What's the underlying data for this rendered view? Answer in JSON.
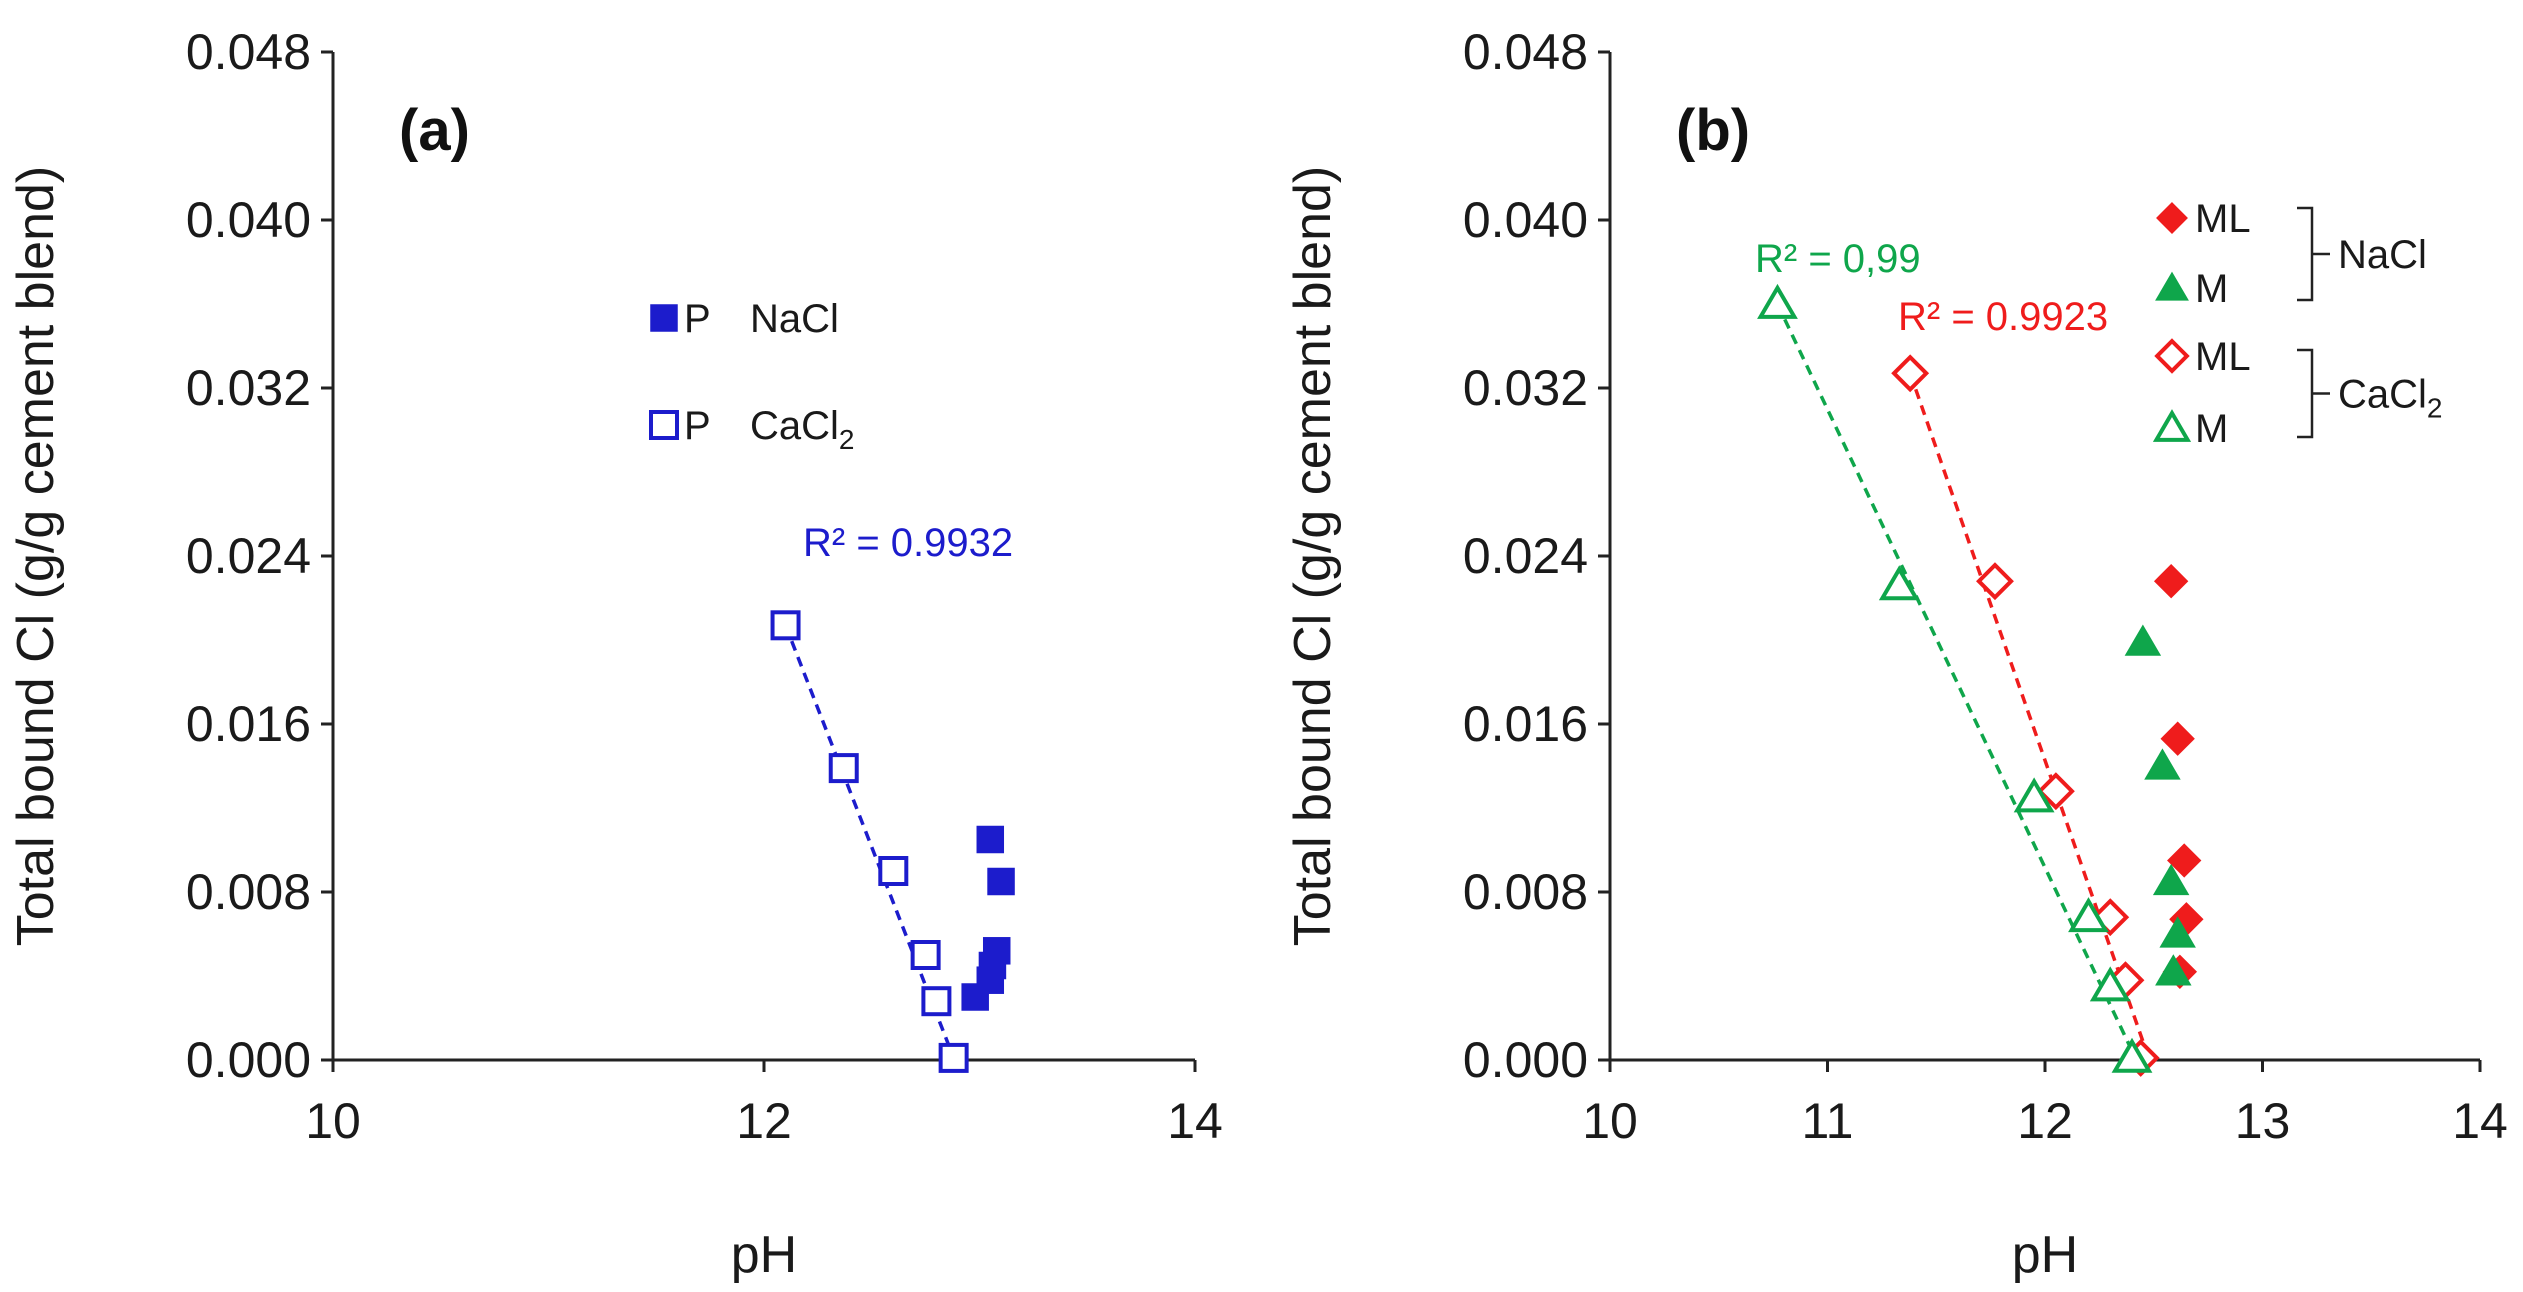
{
  "chart_data": [
    {
      "type": "scatter",
      "panel_label": "(a)",
      "xlabel": "pH",
      "ylabel": "Total bound Cl (g/g cement blend)",
      "xlim": [
        10,
        14
      ],
      "ylim": [
        0,
        0.048
      ],
      "xticks": [
        "10",
        "12",
        "14"
      ],
      "xtick_values": [
        10,
        12,
        14
      ],
      "yticks": [
        "0.000",
        "0.008",
        "0.016",
        "0.024",
        "0.032",
        "0.040",
        "0.048"
      ],
      "ytick_values": [
        0,
        0.008,
        0.016,
        0.024,
        0.032,
        0.04,
        0.048
      ],
      "legend": {
        "placement": "top-center",
        "entries": [
          {
            "marker": "P",
            "label": "NaCl",
            "label_sub": "",
            "series": "P NaCl"
          },
          {
            "marker": "P",
            "label": "CaCl",
            "label_sub": "2",
            "series": "P CaCl2"
          }
        ]
      },
      "series": [
        {
          "name": "P NaCl",
          "key": "p_nacl",
          "color": "#1c1ccc",
          "marker": "square",
          "filled": true,
          "points": [
            [
              13.05,
              0.0105
            ],
            [
              13.1,
              0.0085
            ],
            [
              13.08,
              0.0052
            ],
            [
              13.06,
              0.0045
            ],
            [
              13.05,
              0.0038
            ],
            [
              12.98,
              0.003
            ]
          ]
        },
        {
          "name": "P CaCl2",
          "key": "p_cacl2",
          "color": "#1c1ccc",
          "marker": "square",
          "filled": false,
          "points": [
            [
              12.1,
              0.0207
            ],
            [
              12.37,
              0.0139
            ],
            [
              12.6,
              0.009
            ],
            [
              12.75,
              0.005
            ],
            [
              12.8,
              0.0028
            ],
            [
              12.88,
              0.0001
            ]
          ],
          "trendline": {
            "x1": 12.1,
            "y1": 0.0207,
            "x2": 12.88,
            "y2": 0.0001,
            "r2": "R² = 0.9932"
          }
        }
      ]
    },
    {
      "type": "scatter",
      "panel_label": "(b)",
      "xlabel": "pH",
      "ylabel": "Total bound Cl (g/g cement blend)",
      "xlim": [
        10,
        14
      ],
      "ylim": [
        0,
        0.048
      ],
      "xticks": [
        "10",
        "11",
        "12",
        "13",
        "14"
      ],
      "xtick_values": [
        10,
        11,
        12,
        13,
        14
      ],
      "yticks": [
        "0.000",
        "0.008",
        "0.016",
        "0.024",
        "0.032",
        "0.040",
        "0.048"
      ],
      "ytick_values": [
        0,
        0.008,
        0.016,
        0.024,
        0.032,
        0.04,
        0.048
      ],
      "legend": {
        "placement": "top-right",
        "entries": [
          {
            "label": "ML",
            "series": "ML NaCl"
          },
          {
            "label": "M",
            "series": "M NaCl"
          },
          {
            "label": "ML",
            "series": "ML CaCl2"
          },
          {
            "label": "M",
            "series": "M CaCl2"
          }
        ],
        "groups": [
          {
            "label": "NaCl",
            "label_sub": ""
          },
          {
            "label": "CaCl",
            "label_sub": "2"
          }
        ]
      },
      "series": [
        {
          "name": "ML NaCl",
          "key": "ml_nacl",
          "color": "#ef1c1c",
          "marker": "diamond",
          "filled": true,
          "points": [
            [
              12.58,
              0.0228
            ],
            [
              12.61,
              0.0153
            ],
            [
              12.64,
              0.0095
            ],
            [
              12.65,
              0.0067
            ],
            [
              12.62,
              0.0042
            ]
          ]
        },
        {
          "name": "M NaCl",
          "key": "m_nacl",
          "color": "#0fa64b",
          "marker": "triangle",
          "filled": true,
          "points": [
            [
              12.45,
              0.0199
            ],
            [
              12.54,
              0.014
            ],
            [
              12.58,
              0.0085
            ],
            [
              12.61,
              0.006
            ],
            [
              12.59,
              0.0042
            ]
          ]
        },
        {
          "name": "ML CaCl2",
          "key": "ml_cacl2",
          "color": "#ef1c1c",
          "marker": "diamond",
          "filled": false,
          "points": [
            [
              11.38,
              0.0327
            ],
            [
              11.77,
              0.0228
            ],
            [
              12.05,
              0.0128
            ],
            [
              12.3,
              0.0068
            ],
            [
              12.37,
              0.0038
            ],
            [
              12.44,
              0.0001
            ]
          ],
          "trendline": {
            "x1": 11.38,
            "y1": 0.0327,
            "x2": 12.48,
            "y2": 0.0,
            "r2": "R² = 0.9923"
          }
        },
        {
          "name": "M CaCl2",
          "key": "m_cacl2",
          "color": "#0fa64b",
          "marker": "triangle",
          "filled": false,
          "points": [
            [
              10.77,
              0.036
            ],
            [
              11.33,
              0.0226
            ],
            [
              11.95,
              0.0125
            ],
            [
              12.2,
              0.0068
            ],
            [
              12.3,
              0.0035
            ],
            [
              12.4,
              0.0001
            ]
          ],
          "trendline": {
            "x1": 10.77,
            "y1": 0.036,
            "x2": 12.42,
            "y2": 0.0,
            "r2": "R² = 0,99"
          }
        }
      ]
    }
  ]
}
